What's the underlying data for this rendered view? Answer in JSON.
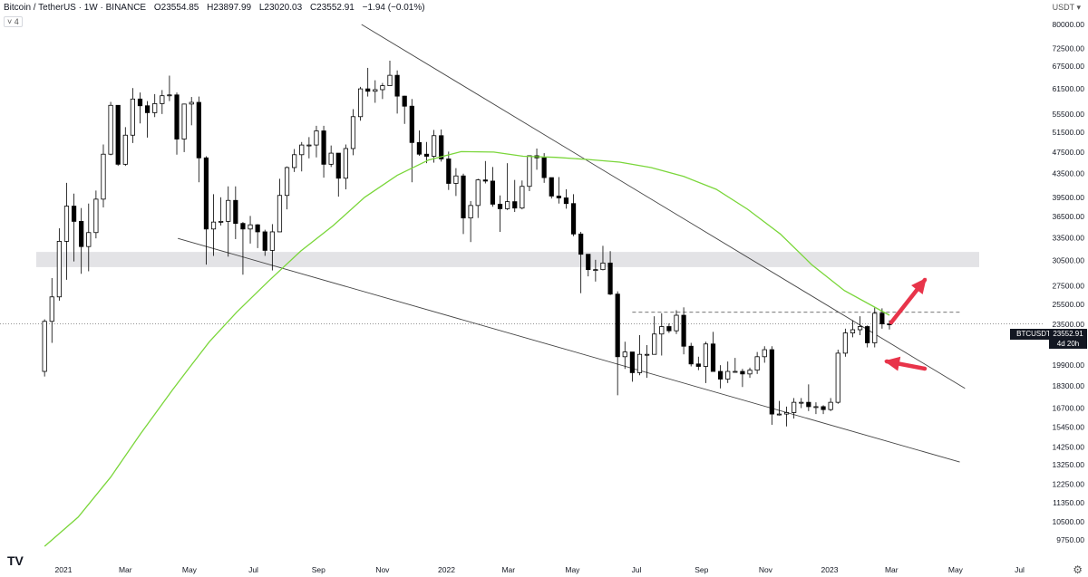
{
  "header": {
    "symbol": "Bitcoin / TetherUS · 1W · BINANCE",
    "open": "O23554.85",
    "high": "H23897.99",
    "low": "L23020.03",
    "close": "C23552.91",
    "change": "−1.94 (−0.01%)",
    "indicator_badge": "˅ 4",
    "currency": "USDT ▾"
  },
  "price_label": {
    "ticker": "BTCUSDT",
    "price": "23552.91",
    "countdown": "4d 20h"
  },
  "logo_text": "TV",
  "chart_data": {
    "type": "candlestick",
    "y_scale": "log",
    "ylim": [
      9300,
      85000
    ],
    "y_ticks": [
      "80000.00",
      "72500.00",
      "67500.00",
      "61500.00",
      "55500.00",
      "51500.00",
      "47500.00",
      "43500.00",
      "39500.00",
      "36500.00",
      "33500.00",
      "30500.00",
      "27500.00",
      "25500.00",
      "23500.00",
      "21500.00",
      "19900.00",
      "18300.00",
      "16700.00",
      "15450.00",
      "14250.00",
      "13250.00",
      "12250.00",
      "11350.00",
      "10500.00",
      "9750.00"
    ],
    "x_ticks": [
      "2021",
      "Mar",
      "May",
      "Jul",
      "Sep",
      "Nov",
      "2022",
      "Mar",
      "May",
      "Jul",
      "Sep",
      "Nov",
      "2023",
      "Mar",
      "May",
      "Jul"
    ],
    "x_tick_dates": [
      "2021-01-01",
      "2021-03-01",
      "2021-05-01",
      "2021-07-01",
      "2021-09-01",
      "2021-11-01",
      "2022-01-01",
      "2022-03-01",
      "2022-05-01",
      "2022-07-01",
      "2022-09-01",
      "2022-11-01",
      "2023-01-01",
      "2023-03-01",
      "2023-05-01",
      "2023-07-01"
    ],
    "candles": [
      {
        "d": "2020-12-14",
        "o": 19400,
        "h": 24000,
        "l": 19000,
        "c": 23800
      },
      {
        "d": "2020-12-21",
        "o": 23800,
        "h": 28400,
        "l": 21800,
        "c": 26300
      },
      {
        "d": "2020-12-28",
        "o": 26300,
        "h": 34800,
        "l": 25900,
        "c": 33000
      },
      {
        "d": "2021-01-04",
        "o": 33000,
        "h": 41900,
        "l": 28200,
        "c": 38100
      },
      {
        "d": "2021-01-11",
        "o": 38100,
        "h": 40100,
        "l": 30400,
        "c": 35800
      },
      {
        "d": "2021-01-18",
        "o": 35800,
        "h": 37800,
        "l": 28900,
        "c": 32300
      },
      {
        "d": "2021-01-25",
        "o": 32300,
        "h": 38500,
        "l": 29200,
        "c": 34200
      },
      {
        "d": "2021-02-01",
        "o": 34200,
        "h": 40600,
        "l": 33400,
        "c": 39200
      },
      {
        "d": "2021-02-08",
        "o": 39200,
        "h": 49000,
        "l": 37900,
        "c": 47100
      },
      {
        "d": "2021-02-15",
        "o": 47100,
        "h": 58300,
        "l": 46900,
        "c": 57500
      },
      {
        "d": "2021-02-22",
        "o": 57500,
        "h": 57500,
        "l": 44900,
        "c": 45200
      },
      {
        "d": "2021-03-01",
        "o": 45200,
        "h": 52600,
        "l": 44900,
        "c": 50900
      },
      {
        "d": "2021-03-08",
        "o": 50900,
        "h": 61700,
        "l": 49300,
        "c": 59000
      },
      {
        "d": "2021-03-15",
        "o": 59000,
        "h": 60600,
        "l": 53400,
        "c": 57400
      },
      {
        "d": "2021-03-22",
        "o": 57400,
        "h": 58500,
        "l": 50400,
        "c": 55800
      },
      {
        "d": "2021-03-29",
        "o": 55800,
        "h": 60200,
        "l": 54800,
        "c": 57900
      },
      {
        "d": "2021-04-05",
        "o": 57900,
        "h": 61200,
        "l": 55500,
        "c": 59800
      },
      {
        "d": "2021-04-12",
        "o": 59800,
        "h": 64900,
        "l": 58500,
        "c": 60000
      },
      {
        "d": "2021-04-19",
        "o": 60000,
        "h": 60600,
        "l": 47000,
        "c": 50100
      },
      {
        "d": "2021-04-26",
        "o": 50100,
        "h": 57900,
        "l": 47500,
        "c": 57800
      },
      {
        "d": "2021-05-03",
        "o": 57800,
        "h": 59500,
        "l": 53000,
        "c": 58200
      },
      {
        "d": "2021-05-10",
        "o": 58200,
        "h": 59600,
        "l": 42000,
        "c": 46400
      },
      {
        "d": "2021-05-17",
        "o": 46400,
        "h": 46700,
        "l": 30000,
        "c": 34700
      },
      {
        "d": "2021-05-24",
        "o": 34700,
        "h": 40000,
        "l": 31100,
        "c": 35700
      },
      {
        "d": "2021-05-31",
        "o": 35700,
        "h": 39500,
        "l": 35200,
        "c": 35800
      },
      {
        "d": "2021-06-07",
        "o": 35800,
        "h": 41300,
        "l": 31000,
        "c": 39000
      },
      {
        "d": "2021-06-14",
        "o": 39000,
        "h": 41300,
        "l": 33300,
        "c": 35500
      },
      {
        "d": "2021-06-21",
        "o": 35500,
        "h": 35700,
        "l": 28800,
        "c": 34700
      },
      {
        "d": "2021-06-28",
        "o": 34700,
        "h": 36600,
        "l": 32700,
        "c": 35300
      },
      {
        "d": "2021-07-05",
        "o": 35300,
        "h": 35400,
        "l": 32100,
        "c": 34300
      },
      {
        "d": "2021-07-12",
        "o": 34300,
        "h": 34600,
        "l": 31100,
        "c": 31800
      },
      {
        "d": "2021-07-19",
        "o": 31800,
        "h": 35400,
        "l": 29300,
        "c": 34300
      },
      {
        "d": "2021-07-26",
        "o": 34300,
        "h": 42600,
        "l": 34300,
        "c": 39800
      },
      {
        "d": "2021-08-02",
        "o": 39800,
        "h": 44800,
        "l": 37600,
        "c": 44600
      },
      {
        "d": "2021-08-09",
        "o": 44600,
        "h": 48100,
        "l": 43800,
        "c": 47000
      },
      {
        "d": "2021-08-16",
        "o": 47000,
        "h": 49500,
        "l": 43900,
        "c": 48900
      },
      {
        "d": "2021-08-23",
        "o": 48900,
        "h": 50500,
        "l": 46300,
        "c": 48900
      },
      {
        "d": "2021-08-30",
        "o": 48900,
        "h": 52900,
        "l": 46500,
        "c": 51800
      },
      {
        "d": "2021-09-06",
        "o": 51800,
        "h": 52900,
        "l": 42800,
        "c": 45200
      },
      {
        "d": "2021-09-13",
        "o": 45200,
        "h": 48800,
        "l": 44700,
        "c": 47300
      },
      {
        "d": "2021-09-20",
        "o": 47300,
        "h": 47300,
        "l": 39600,
        "c": 42700
      },
      {
        "d": "2021-09-27",
        "o": 42700,
        "h": 49000,
        "l": 40800,
        "c": 48200
      },
      {
        "d": "2021-10-04",
        "o": 48200,
        "h": 56600,
        "l": 46900,
        "c": 54900
      },
      {
        "d": "2021-10-11",
        "o": 54900,
        "h": 62000,
        "l": 54000,
        "c": 61500
      },
      {
        "d": "2021-10-18",
        "o": 61500,
        "h": 67000,
        "l": 59600,
        "c": 60900
      },
      {
        "d": "2021-10-25",
        "o": 60900,
        "h": 63700,
        "l": 58100,
        "c": 61300
      },
      {
        "d": "2021-11-01",
        "o": 61300,
        "h": 63000,
        "l": 59000,
        "c": 62300
      },
      {
        "d": "2021-11-08",
        "o": 62300,
        "h": 69000,
        "l": 62300,
        "c": 65000
      },
      {
        "d": "2021-11-15",
        "o": 65000,
        "h": 66300,
        "l": 55600,
        "c": 59700
      },
      {
        "d": "2021-11-22",
        "o": 59700,
        "h": 59800,
        "l": 53300,
        "c": 57300
      },
      {
        "d": "2021-11-29",
        "o": 57300,
        "h": 59000,
        "l": 42000,
        "c": 49400
      },
      {
        "d": "2021-12-06",
        "o": 49400,
        "h": 51900,
        "l": 46800,
        "c": 47100
      },
      {
        "d": "2021-12-13",
        "o": 47100,
        "h": 49500,
        "l": 45400,
        "c": 46700
      },
      {
        "d": "2021-12-20",
        "o": 46700,
        "h": 52000,
        "l": 45500,
        "c": 50800
      },
      {
        "d": "2021-12-27",
        "o": 50800,
        "h": 52100,
        "l": 45700,
        "c": 46200
      },
      {
        "d": "2022-01-03",
        "o": 46200,
        "h": 47600,
        "l": 40700,
        "c": 41800
      },
      {
        "d": "2022-01-10",
        "o": 41800,
        "h": 44500,
        "l": 39700,
        "c": 43100
      },
      {
        "d": "2022-01-17",
        "o": 43100,
        "h": 43500,
        "l": 34000,
        "c": 36300
      },
      {
        "d": "2022-01-24",
        "o": 36300,
        "h": 38900,
        "l": 32900,
        "c": 38200
      },
      {
        "d": "2022-01-31",
        "o": 38200,
        "h": 42600,
        "l": 36300,
        "c": 42400
      },
      {
        "d": "2022-02-07",
        "o": 42400,
        "h": 45800,
        "l": 41800,
        "c": 42200
      },
      {
        "d": "2022-02-14",
        "o": 42200,
        "h": 44700,
        "l": 38000,
        "c": 38400
      },
      {
        "d": "2022-02-21",
        "o": 38400,
        "h": 39800,
        "l": 34300,
        "c": 37700
      },
      {
        "d": "2022-02-28",
        "o": 37700,
        "h": 45400,
        "l": 37500,
        "c": 38800
      },
      {
        "d": "2022-03-07",
        "o": 38800,
        "h": 42400,
        "l": 37200,
        "c": 37800
      },
      {
        "d": "2022-03-14",
        "o": 37800,
        "h": 42300,
        "l": 37600,
        "c": 41300
      },
      {
        "d": "2022-03-21",
        "o": 41300,
        "h": 46700,
        "l": 40500,
        "c": 46800
      },
      {
        "d": "2022-03-28",
        "o": 46800,
        "h": 48200,
        "l": 44200,
        "c": 46400
      },
      {
        "d": "2022-04-04",
        "o": 46400,
        "h": 47300,
        "l": 41900,
        "c": 42800
      },
      {
        "d": "2022-04-11",
        "o": 42800,
        "h": 42800,
        "l": 39300,
        "c": 39700
      },
      {
        "d": "2022-04-18",
        "o": 39700,
        "h": 42900,
        "l": 38500,
        "c": 39400
      },
      {
        "d": "2022-04-25",
        "o": 39400,
        "h": 40800,
        "l": 37700,
        "c": 38500
      },
      {
        "d": "2022-05-02",
        "o": 38500,
        "h": 40000,
        "l": 33700,
        "c": 34000
      },
      {
        "d": "2022-05-09",
        "o": 34000,
        "h": 34300,
        "l": 26700,
        "c": 31300
      },
      {
        "d": "2022-05-16",
        "o": 31300,
        "h": 31300,
        "l": 28600,
        "c": 29400
      },
      {
        "d": "2022-05-23",
        "o": 29400,
        "h": 30600,
        "l": 28000,
        "c": 29400
      },
      {
        "d": "2022-05-30",
        "o": 29400,
        "h": 32400,
        "l": 29300,
        "c": 30200
      },
      {
        "d": "2022-06-06",
        "o": 30200,
        "h": 31700,
        "l": 26500,
        "c": 26600
      },
      {
        "d": "2022-06-13",
        "o": 26600,
        "h": 26900,
        "l": 17600,
        "c": 20600
      },
      {
        "d": "2022-06-20",
        "o": 20600,
        "h": 21900,
        "l": 19600,
        "c": 21000
      },
      {
        "d": "2022-06-27",
        "o": 21000,
        "h": 21000,
        "l": 18600,
        "c": 19300
      },
      {
        "d": "2022-07-04",
        "o": 19300,
        "h": 22500,
        "l": 19100,
        "c": 20800
      },
      {
        "d": "2022-07-11",
        "o": 20800,
        "h": 21600,
        "l": 18900,
        "c": 20800
      },
      {
        "d": "2022-07-18",
        "o": 20800,
        "h": 24300,
        "l": 20800,
        "c": 22600
      },
      {
        "d": "2022-07-25",
        "o": 22600,
        "h": 24600,
        "l": 20700,
        "c": 23300
      },
      {
        "d": "2022-08-01",
        "o": 23300,
        "h": 23600,
        "l": 22700,
        "c": 22900
      },
      {
        "d": "2022-08-08",
        "o": 22900,
        "h": 24900,
        "l": 22600,
        "c": 24400
      },
      {
        "d": "2022-08-15",
        "o": 24400,
        "h": 25200,
        "l": 20800,
        "c": 21500
      },
      {
        "d": "2022-08-22",
        "o": 21500,
        "h": 21800,
        "l": 19800,
        "c": 20000
      },
      {
        "d": "2022-08-29",
        "o": 20000,
        "h": 20600,
        "l": 19500,
        "c": 19800
      },
      {
        "d": "2022-09-05",
        "o": 19800,
        "h": 21900,
        "l": 18500,
        "c": 21700
      },
      {
        "d": "2022-09-12",
        "o": 21700,
        "h": 22800,
        "l": 19400,
        "c": 19400
      },
      {
        "d": "2022-09-19",
        "o": 19400,
        "h": 19900,
        "l": 18100,
        "c": 18800
      },
      {
        "d": "2022-09-26",
        "o": 18800,
        "h": 20200,
        "l": 18500,
        "c": 19400
      },
      {
        "d": "2022-10-03",
        "o": 19400,
        "h": 20500,
        "l": 19300,
        "c": 19400
      },
      {
        "d": "2022-10-10",
        "o": 19400,
        "h": 19600,
        "l": 18200,
        "c": 19200
      },
      {
        "d": "2022-10-17",
        "o": 19200,
        "h": 19700,
        "l": 18900,
        "c": 19500
      },
      {
        "d": "2022-10-24",
        "o": 19500,
        "h": 21000,
        "l": 19200,
        "c": 20600
      },
      {
        "d": "2022-10-31",
        "o": 20600,
        "h": 21500,
        "l": 20100,
        "c": 21200
      },
      {
        "d": "2022-11-07",
        "o": 21200,
        "h": 21500,
        "l": 15600,
        "c": 16300
      },
      {
        "d": "2022-11-14",
        "o": 16300,
        "h": 17200,
        "l": 16200,
        "c": 16300
      },
      {
        "d": "2022-11-21",
        "o": 16300,
        "h": 16800,
        "l": 15500,
        "c": 16400
      },
      {
        "d": "2022-11-28",
        "o": 16400,
        "h": 17400,
        "l": 16000,
        "c": 17100
      },
      {
        "d": "2022-12-05",
        "o": 17100,
        "h": 17400,
        "l": 16700,
        "c": 17100
      },
      {
        "d": "2022-12-12",
        "o": 17100,
        "h": 18400,
        "l": 16500,
        "c": 16800
      },
      {
        "d": "2022-12-19",
        "o": 16800,
        "h": 17100,
        "l": 16300,
        "c": 16800
      },
      {
        "d": "2022-12-26",
        "o": 16800,
        "h": 16900,
        "l": 16300,
        "c": 16600
      },
      {
        "d": "2023-01-02",
        "o": 16600,
        "h": 17400,
        "l": 16500,
        "c": 17100
      },
      {
        "d": "2023-01-09",
        "o": 17100,
        "h": 21200,
        "l": 17000,
        "c": 20900
      },
      {
        "d": "2023-01-16",
        "o": 20900,
        "h": 23100,
        "l": 20600,
        "c": 22700
      },
      {
        "d": "2023-01-23",
        "o": 22700,
        "h": 23900,
        "l": 22300,
        "c": 23000
      },
      {
        "d": "2023-01-30",
        "o": 23000,
        "h": 24300,
        "l": 22500,
        "c": 23300
      },
      {
        "d": "2023-02-06",
        "o": 23300,
        "h": 23400,
        "l": 21400,
        "c": 21800
      },
      {
        "d": "2023-02-13",
        "o": 21800,
        "h": 25200,
        "l": 21400,
        "c": 24600
      },
      {
        "d": "2023-02-20",
        "o": 24600,
        "h": 25100,
        "l": 23100,
        "c": 23554
      },
      {
        "d": "2023-02-27",
        "o": 23554,
        "h": 23898,
        "l": 23020,
        "c": 23553
      }
    ],
    "moving_average": {
      "color": "#7ad63a",
      "points": [
        {
          "d": "2020-12-14",
          "v": 9500
        },
        {
          "d": "2021-01-15",
          "v": 10700
        },
        {
          "d": "2021-02-15",
          "v": 12600
        },
        {
          "d": "2021-03-15",
          "v": 15000
        },
        {
          "d": "2021-04-15",
          "v": 18000
        },
        {
          "d": "2021-05-01",
          "v": 19700
        },
        {
          "d": "2021-05-20",
          "v": 21900
        },
        {
          "d": "2021-06-15",
          "v": 24700
        },
        {
          "d": "2021-07-15",
          "v": 28000
        },
        {
          "d": "2021-08-15",
          "v": 31700
        },
        {
          "d": "2021-09-15",
          "v": 35200
        },
        {
          "d": "2021-10-15",
          "v": 39500
        },
        {
          "d": "2021-11-15",
          "v": 43200
        },
        {
          "d": "2021-12-15",
          "v": 46000
        },
        {
          "d": "2022-01-15",
          "v": 47600
        },
        {
          "d": "2022-02-15",
          "v": 47500
        },
        {
          "d": "2022-03-15",
          "v": 46700
        },
        {
          "d": "2022-04-15",
          "v": 46500
        },
        {
          "d": "2022-05-15",
          "v": 46100
        },
        {
          "d": "2022-06-15",
          "v": 45600
        },
        {
          "d": "2022-07-15",
          "v": 44600
        },
        {
          "d": "2022-08-15",
          "v": 43000
        },
        {
          "d": "2022-09-15",
          "v": 40800
        },
        {
          "d": "2022-10-15",
          "v": 37600
        },
        {
          "d": "2022-11-15",
          "v": 34000
        },
        {
          "d": "2022-12-15",
          "v": 30000
        },
        {
          "d": "2023-01-15",
          "v": 27000
        },
        {
          "d": "2023-02-27",
          "v": 24400
        }
      ]
    },
    "trendlines": [
      {
        "start": {
          "d": "2021-10-12",
          "v": 80000
        },
        "end": {
          "d": "2023-05-10",
          "v": 18100
        }
      },
      {
        "start": {
          "d": "2021-04-20",
          "v": 33400
        },
        "end": {
          "d": "2023-05-05",
          "v": 13400
        }
      }
    ],
    "support_zone": [
      29700,
      31600
    ],
    "resistance_level": 24700,
    "current_price": 23552.91
  }
}
